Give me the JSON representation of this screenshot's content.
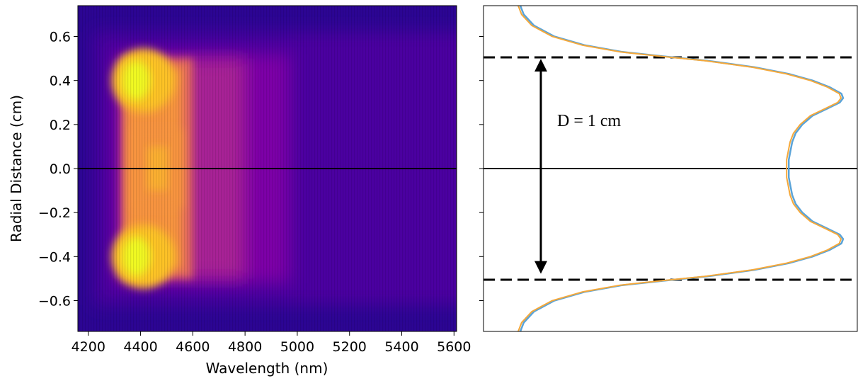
{
  "chart_data": [
    {
      "type": "heatmap",
      "title": "",
      "xlabel": "Wavelength (nm)",
      "ylabel": "Radial Distance (cm)",
      "xlim": [
        4160,
        5610
      ],
      "ylim": [
        -0.74,
        0.74
      ],
      "x_ticks": [
        4200,
        4400,
        4600,
        4800,
        5000,
        5200,
        5400,
        5600
      ],
      "x_tick_labels": [
        "4200",
        "4400",
        "4600",
        "4800",
        "5000",
        "5200",
        "5400",
        "5600"
      ],
      "y_ticks": [
        0.6,
        0.4,
        0.2,
        0.0,
        -0.2,
        -0.4,
        -0.6
      ],
      "y_tick_labels": [
        "0.6",
        "0.4",
        "0.2",
        "0.0",
        "−0.2",
        "−0.4",
        "−0.6"
      ],
      "colormap": "plasma",
      "colormap_stops": [
        "#0d0887",
        "#4b03a1",
        "#7d03a8",
        "#a82296",
        "#cb4679",
        "#e56b5d",
        "#f89441",
        "#fdc328",
        "#f0f921"
      ],
      "horizontal_line_y": 0.0,
      "intensity_band_wavelength_range": [
        4330,
        4600
      ],
      "intensity_peaks_radial": [
        0.4,
        -0.4
      ],
      "grid": false
    },
    {
      "type": "line",
      "title": "",
      "xlabel": "",
      "ylabel": "",
      "ylim": [
        -0.74,
        0.74
      ],
      "y_ticks": [
        0.6,
        0.4,
        0.2,
        0.0,
        -0.2,
        -0.4,
        -0.6
      ],
      "x_tick_labels_visible": false,
      "y_tick_labels_visible": false,
      "xlim": [
        0,
        1.0
      ],
      "series_colors": [
        "#5aa3d8",
        "#f5a83a"
      ],
      "profile_samples": {
        "y": [
          0.74,
          0.7,
          0.65,
          0.6,
          0.56,
          0.53,
          0.51,
          0.49,
          0.46,
          0.43,
          0.4,
          0.37,
          0.34,
          0.32,
          0.3,
          0.27,
          0.24,
          0.2,
          0.16,
          0.12,
          0.08,
          0.04,
          0.0
        ],
        "intensity": [
          0.05,
          0.06,
          0.09,
          0.15,
          0.24,
          0.35,
          0.47,
          0.6,
          0.74,
          0.84,
          0.91,
          0.96,
          0.995,
          1.0,
          0.99,
          0.95,
          0.91,
          0.88,
          0.86,
          0.85,
          0.845,
          0.84,
          0.84
        ]
      },
      "dashed_lines_y": [
        0.505,
        -0.505
      ],
      "center_line_y": 0.0,
      "arrow_y_range": [
        0.495,
        -0.475
      ],
      "annotation": "D = 1 cm",
      "grid": false
    }
  ]
}
